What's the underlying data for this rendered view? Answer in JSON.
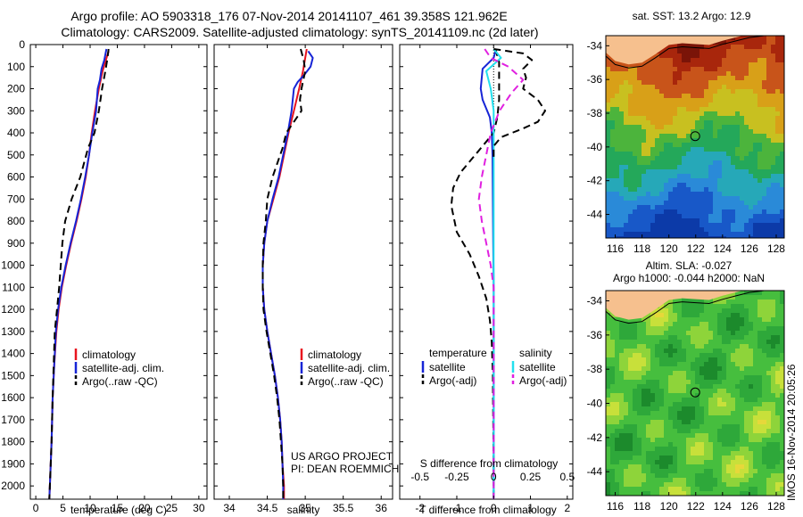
{
  "header": {
    "title_line1": "Argo profile: AO 5903318_176 07-Nov-2014 20141107_461 39.358S 121.962E",
    "title_line2": "Climatology: CARS2009. Satellite-adjusted climatology: synTS_20141109.nc (2d later)"
  },
  "colors": {
    "climatology": "#e8141e",
    "satellite": "#1624d6",
    "argo": "#000000",
    "satellite_diff_s": "#22e0ee",
    "argo_diff_s": "#e020e0",
    "land": "#f6c08e"
  },
  "depth_axis": {
    "ticks": [
      0,
      100,
      200,
      300,
      400,
      500,
      600,
      700,
      800,
      900,
      1000,
      1100,
      1200,
      1300,
      1400,
      1500,
      1600,
      1700,
      1800,
      1900,
      2000
    ],
    "range": [
      0,
      2060
    ]
  },
  "chart_data": [
    {
      "type": "line",
      "panel": "temperature",
      "xlabel": "temperature (deg C)",
      "xlim": [
        -1,
        31.5
      ],
      "xticks": [
        0,
        5,
        10,
        15,
        20,
        25,
        30
      ],
      "ylim": [
        0,
        2060
      ],
      "legend": [
        "climatology",
        "satellite-adj. clim.",
        "Argo(..raw -QC)"
      ],
      "series": [
        {
          "name": "climatology",
          "color": "#e8141e",
          "style": "solid",
          "points": [
            [
              13.4,
              30
            ],
            [
              12.9,
              70
            ],
            [
              12.3,
              120
            ],
            [
              11.6,
              200
            ],
            [
              10.9,
              300
            ],
            [
              10.3,
              400
            ],
            [
              9.8,
              500
            ],
            [
              9.2,
              600
            ],
            [
              8.4,
              700
            ],
            [
              7.5,
              800
            ],
            [
              6.5,
              900
            ],
            [
              5.6,
              1000
            ],
            [
              4.8,
              1100
            ],
            [
              4.2,
              1200
            ],
            [
              3.8,
              1300
            ],
            [
              3.4,
              1450
            ],
            [
              3.1,
              1600
            ],
            [
              2.9,
              1800
            ],
            [
              2.6,
              2000
            ],
            [
              2.5,
              2060
            ]
          ]
        },
        {
          "name": "satellite-adj. clim.",
          "color": "#1624d6",
          "style": "solid",
          "points": [
            [
              13.0,
              20
            ],
            [
              12.6,
              70
            ],
            [
              12.1,
              110
            ],
            [
              11.8,
              160
            ],
            [
              11.4,
              200
            ],
            [
              11.1,
              300
            ],
            [
              10.4,
              400
            ],
            [
              9.8,
              500
            ],
            [
              9.1,
              600
            ],
            [
              8.3,
              700
            ],
            [
              7.4,
              800
            ],
            [
              6.4,
              900
            ],
            [
              5.5,
              1000
            ],
            [
              4.7,
              1100
            ],
            [
              4.1,
              1200
            ],
            [
              3.7,
              1300
            ],
            [
              3.4,
              1450
            ],
            [
              3.1,
              1600
            ],
            [
              2.9,
              1800
            ],
            [
              2.6,
              2000
            ],
            [
              2.5,
              2060
            ]
          ]
        },
        {
          "name": "Argo(..raw -QC)",
          "color": "#000000",
          "style": "dashed",
          "points": [
            [
              13.4,
              20
            ],
            [
              13.2,
              60
            ],
            [
              12.8,
              120
            ],
            [
              12.2,
              200
            ],
            [
              11.6,
              300
            ],
            [
              10.8,
              400
            ],
            [
              9.6,
              470
            ],
            [
              8.2,
              600
            ],
            [
              6.6,
              700
            ],
            [
              5.4,
              800
            ],
            [
              4.9,
              900
            ],
            [
              4.6,
              1000
            ],
            [
              4.3,
              1100
            ],
            [
              3.9,
              1200
            ],
            [
              3.5,
              1300
            ],
            [
              3.3,
              1450
            ],
            [
              3.1,
              1600
            ],
            [
              2.9,
              1800
            ],
            [
              2.6,
              2000
            ],
            [
              2.5,
              2060
            ]
          ]
        }
      ]
    },
    {
      "type": "line",
      "panel": "salinity",
      "xlabel": "salinity",
      "xlim": [
        33.8,
        36.15
      ],
      "xticks": [
        34,
        34.5,
        35,
        35.5,
        36
      ],
      "ylim": [
        0,
        2060
      ],
      "legend": [
        "climatology",
        "satellite-adj. clim.",
        "Argo(..raw -QC)"
      ],
      "series": [
        {
          "name": "climatology",
          "color": "#e8141e",
          "style": "solid",
          "points": [
            [
              35.02,
              20
            ],
            [
              35.0,
              60
            ],
            [
              34.97,
              120
            ],
            [
              34.92,
              200
            ],
            [
              34.85,
              300
            ],
            [
              34.78,
              400
            ],
            [
              34.72,
              500
            ],
            [
              34.66,
              600
            ],
            [
              34.58,
              700
            ],
            [
              34.5,
              800
            ],
            [
              34.46,
              900
            ],
            [
              34.44,
              1000
            ],
            [
              34.44,
              1100
            ],
            [
              34.46,
              1200
            ],
            [
              34.5,
              1300
            ],
            [
              34.55,
              1400
            ],
            [
              34.6,
              1500
            ],
            [
              34.64,
              1600
            ],
            [
              34.67,
              1700
            ],
            [
              34.69,
              1800
            ],
            [
              34.7,
              1900
            ],
            [
              34.72,
              2000
            ],
            [
              34.72,
              2060
            ]
          ]
        },
        {
          "name": "satellite-adj. clim.",
          "color": "#1624d6",
          "style": "solid",
          "points": [
            [
              35.04,
              30
            ],
            [
              35.1,
              60
            ],
            [
              35.07,
              100
            ],
            [
              34.98,
              140
            ],
            [
              34.9,
              170
            ],
            [
              34.85,
              200
            ],
            [
              34.82,
              300
            ],
            [
              34.77,
              400
            ],
            [
              34.71,
              500
            ],
            [
              34.65,
              600
            ],
            [
              34.57,
              700
            ],
            [
              34.5,
              800
            ],
            [
              34.46,
              900
            ],
            [
              34.44,
              1000
            ],
            [
              34.44,
              1100
            ],
            [
              34.46,
              1200
            ],
            [
              34.5,
              1300
            ],
            [
              34.55,
              1400
            ],
            [
              34.6,
              1500
            ],
            [
              34.64,
              1600
            ],
            [
              34.67,
              1700
            ],
            [
              34.69,
              1800
            ],
            [
              34.7,
              1900
            ],
            [
              34.71,
              2000
            ],
            [
              34.71,
              2060
            ]
          ]
        },
        {
          "name": "Argo(..raw -QC)",
          "color": "#000000",
          "style": "dashed",
          "points": [
            [
              34.94,
              20
            ],
            [
              34.98,
              70
            ],
            [
              35.0,
              120
            ],
            [
              34.95,
              200
            ],
            [
              34.93,
              250
            ],
            [
              34.95,
              300
            ],
            [
              34.75,
              400
            ],
            [
              34.7,
              470
            ],
            [
              34.57,
              600
            ],
            [
              34.5,
              700
            ],
            [
              34.48,
              800
            ],
            [
              34.45,
              900
            ],
            [
              34.44,
              1000
            ],
            [
              34.44,
              1100
            ],
            [
              34.45,
              1200
            ],
            [
              34.49,
              1300
            ],
            [
              34.54,
              1400
            ],
            [
              34.59,
              1500
            ],
            [
              34.63,
              1600
            ],
            [
              34.66,
              1700
            ],
            [
              34.68,
              1800
            ],
            [
              34.7,
              1900
            ],
            [
              34.71,
              2000
            ],
            [
              34.71,
              2060
            ]
          ]
        }
      ]
    },
    {
      "type": "line",
      "panel": "difference",
      "xlabel": "T difference from climatology",
      "xlabel_top": "S difference from climatology",
      "xlim": [
        -2.55,
        2.15
      ],
      "xticks": [
        -2,
        -1,
        0,
        1,
        2
      ],
      "xticks_s": [
        "-0.5",
        "-0.25",
        "0",
        "0.25",
        "0.5"
      ],
      "ylim": [
        0,
        2060
      ],
      "legend_headers": [
        "temperature",
        "salinity"
      ],
      "legend": [
        "satellite",
        "Argo(-adj)",
        "satellite",
        "Argo(-adj)"
      ],
      "series": [
        {
          "name": "satellite",
          "quantity": "temperature",
          "color": "#1624d6",
          "style": "solid",
          "points": [
            [
              0.05,
              30
            ],
            [
              0.0,
              60
            ],
            [
              -0.3,
              110
            ],
            [
              -0.35,
              200
            ],
            [
              -0.3,
              250
            ],
            [
              -0.1,
              330
            ],
            [
              -0.05,
              400
            ],
            [
              -0.03,
              500
            ],
            [
              -0.02,
              700
            ],
            [
              -0.01,
              900
            ],
            [
              0,
              1100
            ],
            [
              0,
              1300
            ],
            [
              0,
              1500
            ],
            [
              0,
              1700
            ],
            [
              0,
              1900
            ],
            [
              0,
              2060
            ]
          ]
        },
        {
          "name": "Argo(-adj)",
          "quantity": "temperature",
          "color": "#000000",
          "style": "dashed",
          "points": [
            [
              0.05,
              20
            ],
            [
              0.15,
              80
            ],
            [
              0.15,
              150
            ],
            [
              0.15,
              250
            ],
            [
              0.1,
              330
            ],
            [
              0.0,
              400
            ],
            [
              -0.5,
              500
            ],
            [
              -0.9,
              580
            ],
            [
              -1.1,
              650
            ],
            [
              -1.15,
              730
            ],
            [
              -1.0,
              850
            ],
            [
              -0.65,
              950
            ],
            [
              -0.4,
              1050
            ],
            [
              -0.2,
              1150
            ],
            [
              -0.1,
              1250
            ],
            [
              -0.05,
              1350
            ],
            [
              -0.02,
              1500
            ],
            [
              -0.01,
              1700
            ],
            [
              0,
              1900
            ],
            [
              0,
              2060
            ]
          ]
        },
        {
          "name": "satellite",
          "quantity": "salinity",
          "color": "#22e0ee",
          "style": "solid",
          "points": [
            [
              0.0,
              20
            ],
            [
              0.05,
              60
            ],
            [
              -0.05,
              120
            ],
            [
              -0.02,
              200
            ],
            [
              0.0,
              300
            ],
            [
              0,
              500
            ],
            [
              0,
              700
            ],
            [
              0,
              900
            ],
            [
              0,
              1100
            ],
            [
              0,
              1300
            ],
            [
              0,
              1500
            ],
            [
              0,
              1700
            ],
            [
              0,
              1900
            ],
            [
              0,
              2060
            ]
          ]
        },
        {
          "name": "Argo(-adj)",
          "quantity": "salinity",
          "color": "#e020e0",
          "style": "dashed",
          "points": [
            [
              -0.06,
              20
            ],
            [
              -0.02,
              60
            ],
            [
              0.1,
              100
            ],
            [
              0.2,
              160
            ],
            [
              0.12,
              220
            ],
            [
              0.04,
              300
            ],
            [
              -0.02,
              400
            ],
            [
              -0.05,
              500
            ],
            [
              -0.08,
              600
            ],
            [
              -0.1,
              700
            ],
            [
              -0.08,
              800
            ],
            [
              -0.05,
              900
            ],
            [
              -0.02,
              1000
            ],
            [
              0,
              1100
            ],
            [
              0,
              1300
            ],
            [
              0,
              1500
            ],
            [
              0,
              1700
            ],
            [
              0,
              1900
            ],
            [
              0,
              2060
            ]
          ]
        },
        {
          "name": "",
          "quantity": "salinity",
          "color": "#000000",
          "style": "dashed",
          "points": [
            [
              0.0,
              20
            ],
            [
              0.2,
              40
            ],
            [
              0.26,
              70
            ],
            [
              0.2,
              110
            ],
            [
              0.22,
              150
            ],
            [
              0.2,
              200
            ],
            [
              0.3,
              250
            ],
            [
              0.35,
              300
            ],
            [
              0.3,
              350
            ],
            [
              0.2,
              380
            ],
            [
              0.05,
              420
            ],
            [
              0.0,
              460
            ],
            [
              0,
              520
            ]
          ]
        }
      ]
    },
    {
      "type": "heatmap",
      "panel": "sst_map",
      "title": "sat. SST: 13.2  Argo: 12.9",
      "xticks": [
        116,
        118,
        120,
        122,
        124,
        126,
        128
      ],
      "yticks": [
        -34,
        -36,
        -38,
        -40,
        -42,
        -44
      ],
      "xlim": [
        115.3,
        128.6
      ],
      "ylim": [
        -45.4,
        -33.4
      ],
      "marker": [
        121.962,
        -39.358
      ]
    },
    {
      "type": "heatmap",
      "panel": "sla_map",
      "title_line1": "Altim. SLA: -0.027",
      "title_line2": "Argo h1000: -0.044  h2000: NaN",
      "xticks": [
        116,
        118,
        120,
        122,
        124,
        126,
        128
      ],
      "yticks": [
        -34,
        -36,
        -38,
        -40,
        -42,
        -44
      ],
      "xlim": [
        115.3,
        128.6
      ],
      "ylim": [
        -45.4,
        -33.4
      ],
      "marker": [
        121.962,
        -39.358
      ]
    }
  ],
  "annotations": {
    "project_line1": "US ARGO PROJECT",
    "project_line2": "PI: DEAN ROEMMICH",
    "side_stamp": "IMOS 16-Nov-2014 20:05:26"
  }
}
